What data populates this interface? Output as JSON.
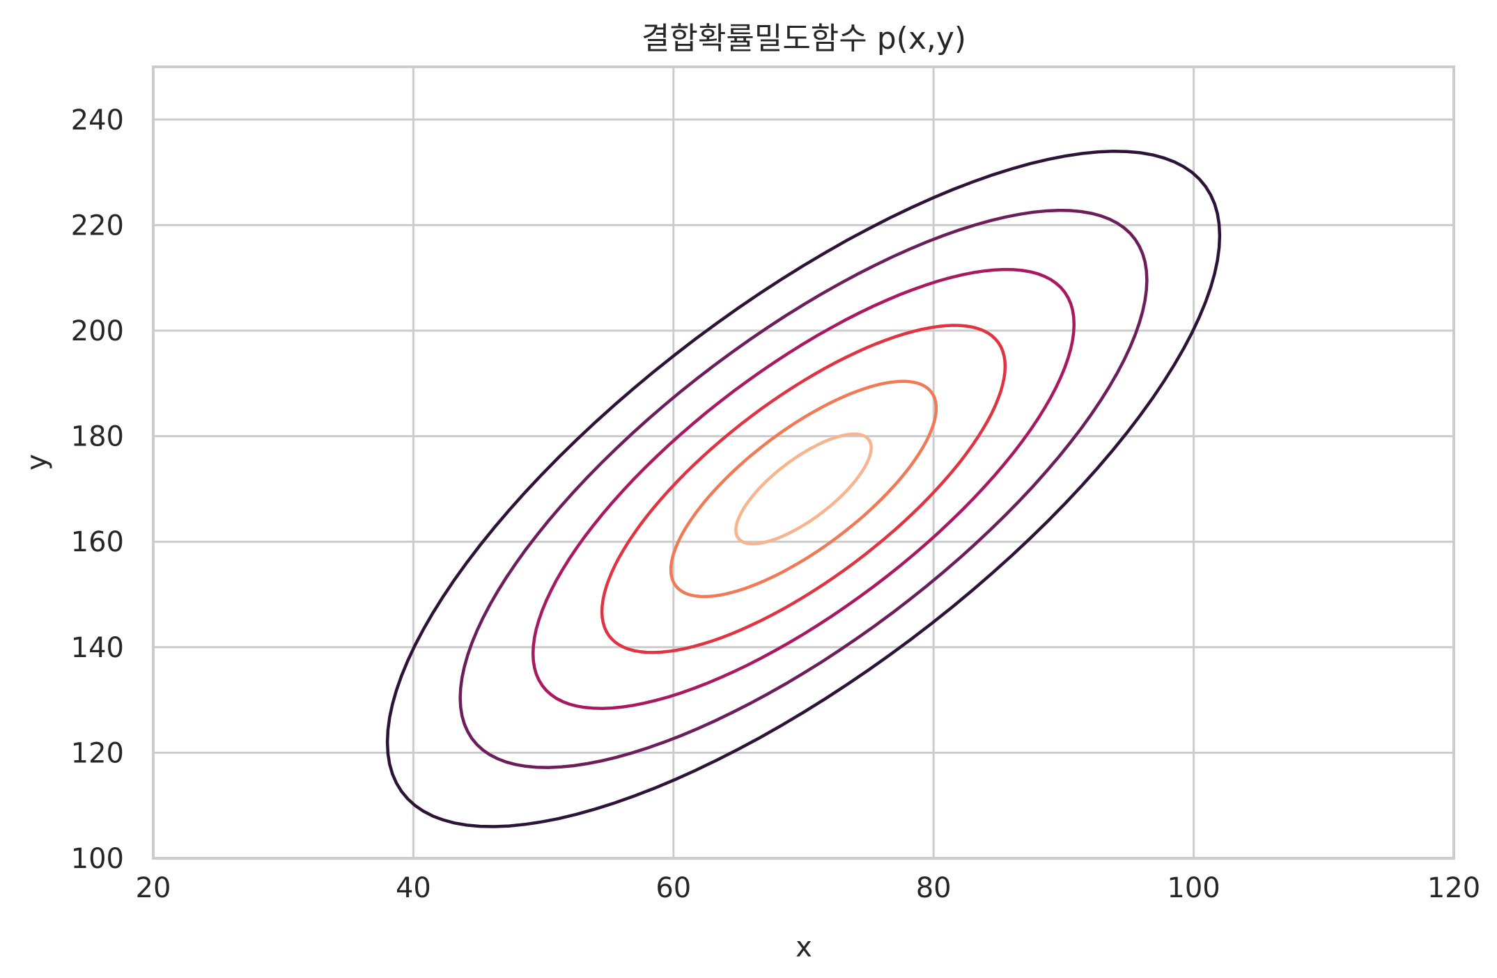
{
  "chart_data": {
    "type": "contour",
    "title": "결합확률밀도함수 p(x,y)",
    "xlabel": "x",
    "ylabel": "y",
    "xlim": [
      20,
      120
    ],
    "ylim": [
      100,
      250
    ],
    "xticks": [
      20,
      40,
      60,
      80,
      100,
      120
    ],
    "yticks": [
      100,
      120,
      140,
      160,
      180,
      200,
      220,
      240
    ],
    "grid": true,
    "distribution": {
      "mean": [
        70,
        170
      ],
      "cov": [
        [
          100,
          150
        ],
        [
          150,
          400
        ]
      ]
    },
    "series": [
      {
        "level": 1,
        "color": "#2d1437",
        "mahalanobis_r": 3.2
      },
      {
        "level": 2,
        "color": "#6b1e5a",
        "mahalanobis_r": 2.64
      },
      {
        "level": 3,
        "color": "#a8195f",
        "mahalanobis_r": 2.08
      },
      {
        "level": 4,
        "color": "#df3441",
        "mahalanobis_r": 1.55
      },
      {
        "level": 5,
        "color": "#f07a55",
        "mahalanobis_r": 1.02
      },
      {
        "level": 6,
        "color": "#f6b48f",
        "mahalanobis_r": 0.52
      }
    ]
  }
}
